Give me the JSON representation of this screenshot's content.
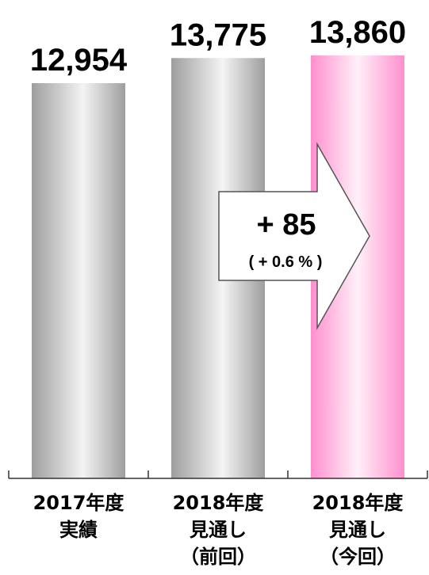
{
  "chart_data": {
    "type": "bar",
    "categories": [
      [
        "2017年度",
        "実績"
      ],
      [
        "2018年度",
        "見通し",
        "（前回）"
      ],
      [
        "2018年度",
        "見通し",
        "（今回）"
      ]
    ],
    "values": [
      12954,
      13775,
      13860
    ],
    "value_labels": [
      "12,954",
      "13,775",
      "13,860"
    ],
    "difference": {
      "label": "+ 85",
      "sublabel": "( + 0.6 % )"
    },
    "bar_styles": [
      "silver",
      "silver",
      "pink"
    ],
    "colors": {
      "silver_edge": "#9e9e9e",
      "silver_mid": "#f4f4f4",
      "pink_edge": "#ff8fce",
      "pink_mid": "#fff0f8",
      "axis": "#333333"
    },
    "title": "",
    "xlabel": "",
    "ylabel": "",
    "grid": false
  }
}
